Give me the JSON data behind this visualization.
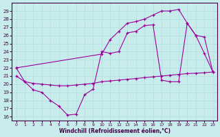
{
  "xlabel": "Windchill (Refroidissement éolien,°C)",
  "background_color": "#c8ecec",
  "line_color": "#990099",
  "grid_color": "#b0dede",
  "ylim": [
    15.5,
    30
  ],
  "xlim": [
    -0.5,
    23.5
  ],
  "yticks": [
    16,
    17,
    18,
    19,
    20,
    21,
    22,
    23,
    24,
    25,
    26,
    27,
    28,
    29
  ],
  "xticks": [
    0,
    1,
    2,
    3,
    4,
    5,
    6,
    7,
    8,
    9,
    10,
    11,
    12,
    13,
    14,
    15,
    16,
    17,
    18,
    19,
    20,
    21,
    22,
    23
  ],
  "line1_x": [
    0,
    1,
    2,
    3,
    4,
    5,
    6,
    7,
    8,
    9,
    10,
    11,
    12,
    13,
    14,
    15,
    16,
    17,
    18,
    19,
    20,
    21,
    22,
    23
  ],
  "line1_y": [
    22,
    20.3,
    19.3,
    19.0,
    18.0,
    17.3,
    16.2,
    16.3,
    18.7,
    19.4,
    24.0,
    23.8,
    24.0,
    26.3,
    26.5,
    27.2,
    27.3,
    20.5,
    20.3,
    20.3,
    27.5,
    26.0,
    23.8,
    21.5
  ],
  "line2_x": [
    0,
    1,
    2,
    3,
    4,
    5,
    6,
    7,
    8,
    9,
    10,
    11,
    12,
    13,
    14,
    15,
    16,
    17,
    18,
    19,
    20,
    21,
    22,
    23
  ],
  "line2_y": [
    21.0,
    20.3,
    20.1,
    20.0,
    19.9,
    19.8,
    19.8,
    19.9,
    20.0,
    20.1,
    20.3,
    20.4,
    20.5,
    20.6,
    20.7,
    20.8,
    20.9,
    21.0,
    21.1,
    21.2,
    21.3,
    21.35,
    21.4,
    21.5
  ],
  "line3_x": [
    0,
    10,
    11,
    12,
    13,
    14,
    15,
    16,
    17,
    18,
    19,
    20,
    21,
    22,
    23
  ],
  "line3_y": [
    22,
    23.7,
    25.5,
    26.5,
    27.5,
    27.7,
    28.0,
    28.5,
    29.0,
    29.0,
    29.2,
    27.5,
    26.0,
    25.8,
    21.5
  ]
}
